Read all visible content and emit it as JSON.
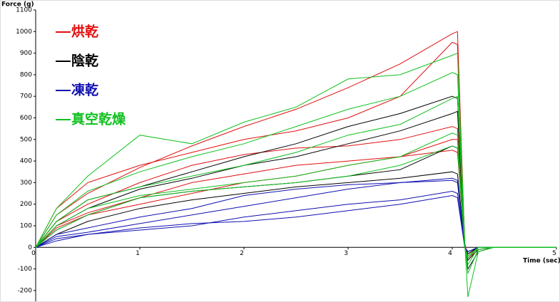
{
  "chart_data": {
    "type": "line",
    "y_label": "Force (g)",
    "x_label": "Time (sec)",
    "xlim": [
      0,
      5
    ],
    "xticks": [
      0,
      1,
      2,
      3,
      4,
      5
    ],
    "ylim": [
      -250,
      1100
    ],
    "yticks": [
      -200,
      -100,
      0,
      100,
      200,
      300,
      400,
      500,
      600,
      700,
      800,
      900,
      1000,
      1100
    ],
    "x": [
      0,
      0.2,
      0.5,
      1,
      1.5,
      2,
      2.5,
      3,
      3.5,
      4,
      4.05,
      4.12,
      4.15,
      4.25,
      4.4,
      5
    ],
    "series": [
      {
        "name": "烘乾",
        "color": "#e01010",
        "curves": [
          [
            0,
            150,
            250,
            370,
            470,
            560,
            640,
            740,
            850,
            990,
            1000,
            10,
            -30,
            0,
            0,
            0
          ],
          [
            0,
            180,
            300,
            380,
            440,
            500,
            540,
            600,
            700,
            950,
            940,
            20,
            -50,
            -10,
            0,
            0
          ],
          [
            0,
            120,
            200,
            300,
            380,
            430,
            460,
            470,
            500,
            560,
            550,
            10,
            -40,
            0,
            0,
            0
          ],
          [
            0,
            100,
            160,
            230,
            300,
            340,
            380,
            400,
            420,
            450,
            440,
            0,
            -30,
            0,
            0,
            0
          ],
          [
            0,
            90,
            150,
            200,
            250,
            300,
            330,
            380,
            420,
            500,
            500,
            0,
            -30,
            0,
            0,
            0
          ]
        ]
      },
      {
        "name": "陰乾",
        "color": "#000000",
        "curves": [
          [
            0,
            120,
            220,
            280,
            350,
            420,
            480,
            560,
            620,
            700,
            690,
            20,
            -100,
            -20,
            0,
            0
          ],
          [
            0,
            100,
            180,
            270,
            320,
            380,
            420,
            480,
            540,
            620,
            630,
            10,
            -60,
            -10,
            0,
            0
          ],
          [
            0,
            80,
            150,
            230,
            260,
            280,
            300,
            330,
            360,
            470,
            460,
            0,
            -40,
            0,
            0,
            0
          ],
          [
            0,
            60,
            120,
            180,
            220,
            250,
            280,
            300,
            320,
            350,
            340,
            0,
            -30,
            0,
            0,
            0
          ]
        ]
      },
      {
        "name": "凍乾",
        "color": "#1010b0",
        "curves": [
          [
            0,
            50,
            70,
            110,
            150,
            190,
            230,
            270,
            300,
            320,
            310,
            0,
            -20,
            0,
            0,
            0
          ],
          [
            0,
            40,
            60,
            90,
            110,
            120,
            140,
            170,
            200,
            240,
            230,
            0,
            -20,
            0,
            0,
            0
          ],
          [
            0,
            60,
            90,
            140,
            180,
            240,
            270,
            290,
            300,
            310,
            300,
            0,
            -20,
            0,
            0,
            0
          ],
          [
            0,
            30,
            60,
            80,
            100,
            140,
            170,
            200,
            220,
            260,
            250,
            0,
            -20,
            0,
            0,
            0
          ]
        ]
      },
      {
        "name": "真空乾燥",
        "color": "#10c020",
        "curves": [
          [
            0,
            180,
            330,
            520,
            480,
            580,
            650,
            780,
            800,
            890,
            900,
            20,
            -230,
            -20,
            0,
            0
          ],
          [
            0,
            150,
            260,
            350,
            420,
            480,
            560,
            640,
            700,
            810,
            800,
            10,
            -120,
            -10,
            0,
            0
          ],
          [
            0,
            120,
            220,
            280,
            330,
            380,
            440,
            520,
            570,
            690,
            700,
            10,
            -80,
            0,
            0,
            0
          ],
          [
            0,
            100,
            180,
            240,
            270,
            300,
            330,
            380,
            420,
            530,
            520,
            0,
            -50,
            0,
            0,
            0
          ],
          [
            0,
            80,
            150,
            230,
            260,
            280,
            300,
            330,
            380,
            470,
            460,
            0,
            -40,
            0,
            0,
            0
          ]
        ]
      }
    ]
  }
}
